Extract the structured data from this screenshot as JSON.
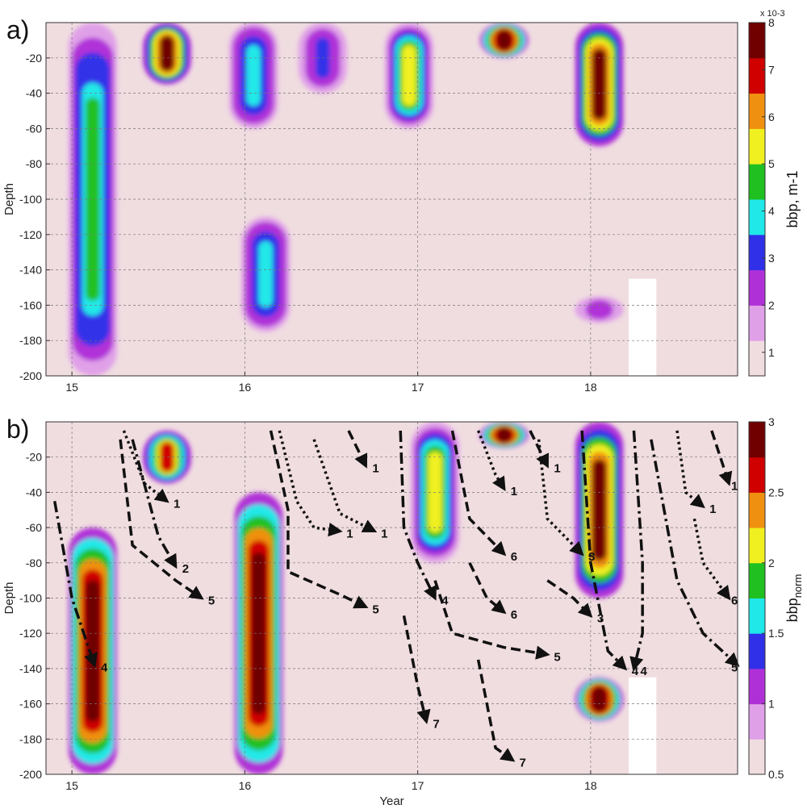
{
  "chart_data": [
    {
      "panel": "a)",
      "type": "heatmap",
      "xlabel": "",
      "ylabel": "Depth",
      "xlim": [
        14.85,
        18.85
      ],
      "ylim": [
        -200,
        0
      ],
      "x_ticks": [
        15,
        16,
        17,
        18
      ],
      "y_ticks": [
        -20,
        -40,
        -60,
        -80,
        -100,
        -120,
        -140,
        -160,
        -180,
        -200
      ],
      "grid": true,
      "colorbar": {
        "label": "bbp, m-1",
        "multiplier": "x 10-3",
        "ticks": [
          1,
          2,
          3,
          4,
          5,
          6,
          7,
          8
        ],
        "range": [
          0.5,
          8
        ],
        "colormap": [
          "#f0dde0",
          "#e0a0e8",
          "#b030d8",
          "#3030e8",
          "#20e8e8",
          "#20c020",
          "#f0f020",
          "#f09010",
          "#d00000",
          "#700000"
        ]
      },
      "features": [
        {
          "x": 15.12,
          "depth_top": 0,
          "depth_bottom": -200,
          "peak": 4.5
        },
        {
          "x": 15.55,
          "depth_top": 0,
          "depth_bottom": -35,
          "peak": 7.5
        },
        {
          "x": 16.05,
          "depth_top": 0,
          "depth_bottom": -60,
          "peak": 3.5
        },
        {
          "x": 16.12,
          "depth_top": -110,
          "depth_bottom": -175,
          "peak": 3.5
        },
        {
          "x": 16.45,
          "depth_top": 0,
          "depth_bottom": -40,
          "peak": 3.0
        },
        {
          "x": 16.95,
          "depth_top": 0,
          "depth_bottom": -60,
          "peak": 5.0
        },
        {
          "x": 17.5,
          "depth_top": 0,
          "depth_bottom": -20,
          "peak": 8.0
        },
        {
          "x": 18.05,
          "depth_top": 0,
          "depth_bottom": -70,
          "peak": 7.5
        },
        {
          "x": 18.05,
          "depth_top": -155,
          "depth_bottom": -170,
          "peak": 2.5
        }
      ],
      "gaps": [
        {
          "x": [
            18.22,
            18.38
          ],
          "depth": [
            -145,
            -200
          ]
        }
      ]
    },
    {
      "panel": "b)",
      "type": "heatmap",
      "xlabel": "Year",
      "ylabel": "Depth",
      "xlim": [
        14.85,
        18.85
      ],
      "ylim": [
        -200,
        0
      ],
      "x_ticks": [
        15,
        16,
        17,
        18
      ],
      "y_ticks": [
        -20,
        -40,
        -60,
        -80,
        -100,
        -120,
        -140,
        -160,
        -180,
        -200
      ],
      "grid": true,
      "colorbar": {
        "label": "bbp",
        "label_subscript": "norm",
        "ticks": [
          0.5,
          1,
          1.5,
          2,
          2.5,
          3
        ],
        "range": [
          0.5,
          3
        ],
        "colormap": [
          "#f0dde0",
          "#e0a0e8",
          "#b030d8",
          "#3030e8",
          "#20e8e8",
          "#20c020",
          "#f0f020",
          "#f09010",
          "#d00000",
          "#700000"
        ]
      },
      "features": [
        {
          "x": 15.12,
          "depth_top": -60,
          "depth_bottom": -200,
          "peak": 3.0
        },
        {
          "x": 15.55,
          "depth_top": -5,
          "depth_bottom": -35,
          "peak": 2.5
        },
        {
          "x": 16.08,
          "depth_top": -40,
          "depth_bottom": -200,
          "peak": 3.0
        },
        {
          "x": 17.1,
          "depth_top": 0,
          "depth_bottom": -80,
          "peak": 2.0
        },
        {
          "x": 17.5,
          "depth_top": 0,
          "depth_bottom": -15,
          "peak": 3.0
        },
        {
          "x": 18.05,
          "depth_top": 0,
          "depth_bottom": -100,
          "peak": 2.8
        },
        {
          "x": 18.05,
          "depth_top": -145,
          "depth_bottom": -170,
          "peak": 3.0
        }
      ],
      "gaps": [
        {
          "x": [
            18.22,
            18.38
          ],
          "depth": [
            -145,
            -200
          ]
        }
      ],
      "arrows": [
        {
          "label": "4",
          "style": "dashdot",
          "points": [
            [
              14.9,
              -45
            ],
            [
              15.0,
              -100
            ],
            [
              15.13,
              -138
            ]
          ]
        },
        {
          "label": "1",
          "style": "dotted",
          "points": [
            [
              15.3,
              -5
            ],
            [
              15.42,
              -35
            ],
            [
              15.55,
              -45
            ]
          ]
        },
        {
          "label": "2",
          "style": "dashdot",
          "points": [
            [
              15.35,
              -10
            ],
            [
              15.5,
              -65
            ],
            [
              15.6,
              -82
            ]
          ]
        },
        {
          "label": "5",
          "style": "dashed",
          "points": [
            [
              15.28,
              -10
            ],
            [
              15.35,
              -70
            ],
            [
              15.6,
              -90
            ],
            [
              15.75,
              -100
            ]
          ]
        },
        {
          "label": "5",
          "style": "dashed",
          "points": [
            [
              16.15,
              -5
            ],
            [
              16.25,
              -50
            ],
            [
              16.25,
              -85
            ],
            [
              16.55,
              -98
            ],
            [
              16.7,
              -105
            ]
          ]
        },
        {
          "label": "1",
          "style": "dotted",
          "points": [
            [
              16.2,
              -5
            ],
            [
              16.3,
              -45
            ],
            [
              16.4,
              -60
            ],
            [
              16.55,
              -62
            ]
          ]
        },
        {
          "label": "1",
          "style": "dashed",
          "points": [
            [
              16.6,
              -5
            ],
            [
              16.7,
              -25
            ]
          ]
        },
        {
          "label": "1",
          "style": "dotted",
          "points": [
            [
              16.4,
              -10
            ],
            [
              16.55,
              -52
            ],
            [
              16.75,
              -62
            ]
          ]
        },
        {
          "label": "4",
          "style": "dashdot",
          "points": [
            [
              16.9,
              -5
            ],
            [
              16.92,
              -60
            ],
            [
              17.0,
              -80
            ],
            [
              17.1,
              -100
            ]
          ]
        },
        {
          "label": "7",
          "style": "dashed",
          "points": [
            [
              16.92,
              -110
            ],
            [
              17.0,
              -150
            ],
            [
              17.05,
              -170
            ]
          ]
        },
        {
          "label": "7",
          "style": "dashed",
          "points": [
            [
              17.35,
              -135
            ],
            [
              17.4,
              -160
            ],
            [
              17.45,
              -185
            ],
            [
              17.55,
              -192
            ]
          ]
        },
        {
          "label": "5",
          "style": "dashed",
          "points": [
            [
              17.1,
              -90
            ],
            [
              17.2,
              -120
            ],
            [
              17.5,
              -128
            ],
            [
              17.75,
              -132
            ]
          ]
        },
        {
          "label": "6",
          "style": "dashed",
          "points": [
            [
              17.2,
              -5
            ],
            [
              17.3,
              -55
            ],
            [
              17.5,
              -75
            ]
          ]
        },
        {
          "label": "6",
          "style": "dashed",
          "points": [
            [
              17.3,
              -80
            ],
            [
              17.4,
              -100
            ],
            [
              17.5,
              -108
            ]
          ]
        },
        {
          "label": "1",
          "style": "dotted",
          "points": [
            [
              17.35,
              -5
            ],
            [
              17.45,
              -30
            ],
            [
              17.5,
              -38
            ]
          ]
        },
        {
          "label": "1",
          "style": "dashed",
          "points": [
            [
              17.65,
              -5
            ],
            [
              17.75,
              -25
            ]
          ]
        },
        {
          "label": "3",
          "style": "dotted",
          "points": [
            [
              17.7,
              -10
            ],
            [
              17.75,
              -55
            ],
            [
              17.95,
              -75
            ]
          ]
        },
        {
          "label": "3",
          "style": "dashed",
          "points": [
            [
              17.75,
              -90
            ],
            [
              17.9,
              -100
            ],
            [
              18.0,
              -110
            ]
          ]
        },
        {
          "label": "4",
          "style": "dashdot",
          "points": [
            [
              17.95,
              -5
            ],
            [
              18.0,
              -80
            ],
            [
              18.1,
              -130
            ],
            [
              18.2,
              -140
            ]
          ]
        },
        {
          "label": "4",
          "style": "dashdot",
          "points": [
            [
              18.25,
              -5
            ],
            [
              18.3,
              -80
            ],
            [
              18.3,
              -120
            ],
            [
              18.25,
              -140
            ]
          ]
        },
        {
          "label": "1",
          "style": "dotted",
          "points": [
            [
              18.5,
              -5
            ],
            [
              18.55,
              -40
            ],
            [
              18.65,
              -48
            ]
          ]
        },
        {
          "label": "1",
          "style": "dashed",
          "points": [
            [
              18.7,
              -5
            ],
            [
              18.8,
              -35
            ]
          ]
        },
        {
          "label": "6",
          "style": "dotted",
          "points": [
            [
              18.6,
              -55
            ],
            [
              18.65,
              -80
            ],
            [
              18.8,
              -100
            ]
          ]
        },
        {
          "label": "5",
          "style": "dashdot",
          "points": [
            [
              18.35,
              -10
            ],
            [
              18.5,
              -90
            ],
            [
              18.65,
              -120
            ],
            [
              18.85,
              -138
            ]
          ]
        }
      ]
    }
  ]
}
